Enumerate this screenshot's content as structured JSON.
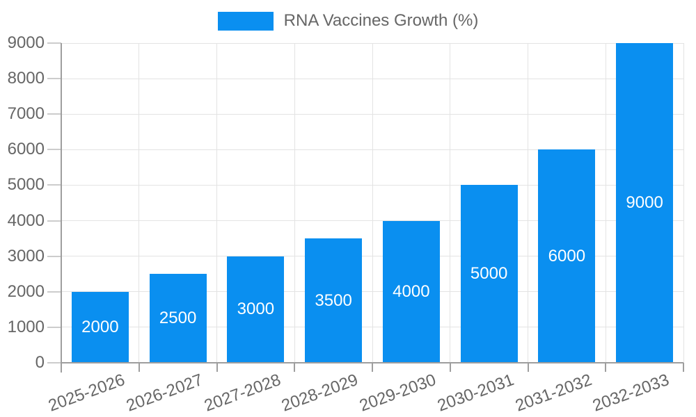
{
  "legend": {
    "label": "RNA Vaccines Growth (%)"
  },
  "chart_data": {
    "type": "bar",
    "title": "RNA Vaccines Growth (%)",
    "categories": [
      "2025-2026",
      "2026-2027",
      "2027-2028",
      "2028-2029",
      "2029-2030",
      "2030-2031",
      "2031-2032",
      "2032-2033"
    ],
    "values": [
      2000,
      2500,
      3000,
      3500,
      4000,
      5000,
      6000,
      9000
    ],
    "bar_labels": [
      "2000",
      "2500",
      "3000",
      "3500",
      "4000",
      "5000",
      "6000",
      "9000"
    ],
    "xlabel": "",
    "ylabel": "",
    "ylim": [
      0,
      9000
    ],
    "ytick_step": 1000,
    "yticks": [
      0,
      1000,
      2000,
      3000,
      4000,
      5000,
      6000,
      7000,
      8000,
      9000
    ],
    "grid": true,
    "legend_position": "top-center",
    "x_label_rotation_deg": -20,
    "colors": {
      "bar": "#0a8ff0",
      "value_text": "#ffffff",
      "axis_text": "#666666",
      "grid_line": "#e3e3e3",
      "axis_line": "#9e9e9e",
      "tick_line": "#cccccc",
      "background": "#ffffff"
    }
  }
}
